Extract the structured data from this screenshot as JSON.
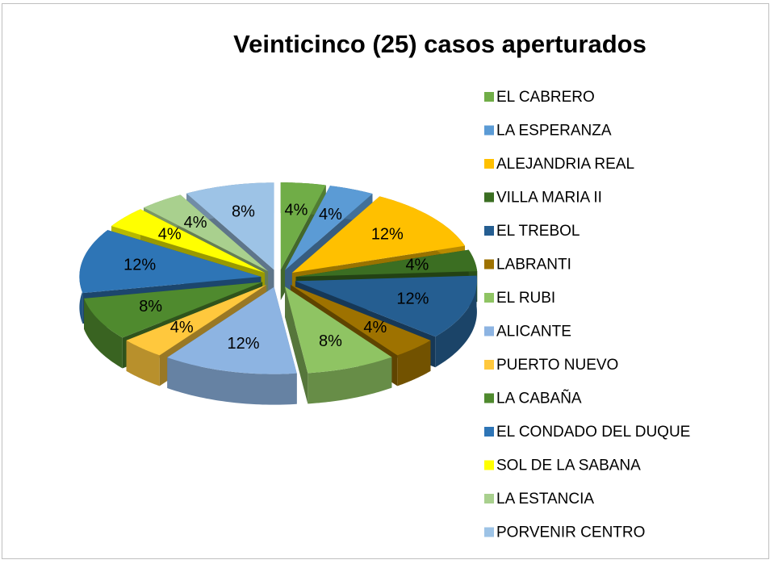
{
  "chart_data": {
    "type": "pie",
    "title": "Veinticinco (25) casos aperturados",
    "categories": [
      "EL CABRERO",
      "LA ESPERANZA",
      "ALEJANDRIA REAL",
      "VILLA MARIA II",
      "EL TREBOL",
      "LABRANTI",
      "EL RUBI",
      "ALICANTE",
      "PUERTO NUEVO",
      "LA CABAÑA",
      "EL CONDADO DEL DUQUE",
      "SOL DE LA SABANA",
      "LA ESTANCIA",
      "PORVENIR CENTRO"
    ],
    "values": [
      4,
      4,
      12,
      4,
      12,
      4,
      8,
      12,
      4,
      8,
      12,
      4,
      4,
      8
    ],
    "value_labels": [
      "4%",
      "4%",
      "12%",
      "4%",
      "12%",
      "4%",
      "8%",
      "12%",
      "4%",
      "8%",
      "12%",
      "4%",
      "4%",
      "8%"
    ],
    "colors": [
      "#70ad47",
      "#5b9bd5",
      "#ffc000",
      "#3b6e22",
      "#255e91",
      "#9e7200",
      "#8fc463",
      "#8db4e2",
      "#ffc83d",
      "#4f8a2e",
      "#2e75b6",
      "#ffff00",
      "#a9d08e",
      "#9dc3e6"
    ],
    "legend": "right"
  }
}
